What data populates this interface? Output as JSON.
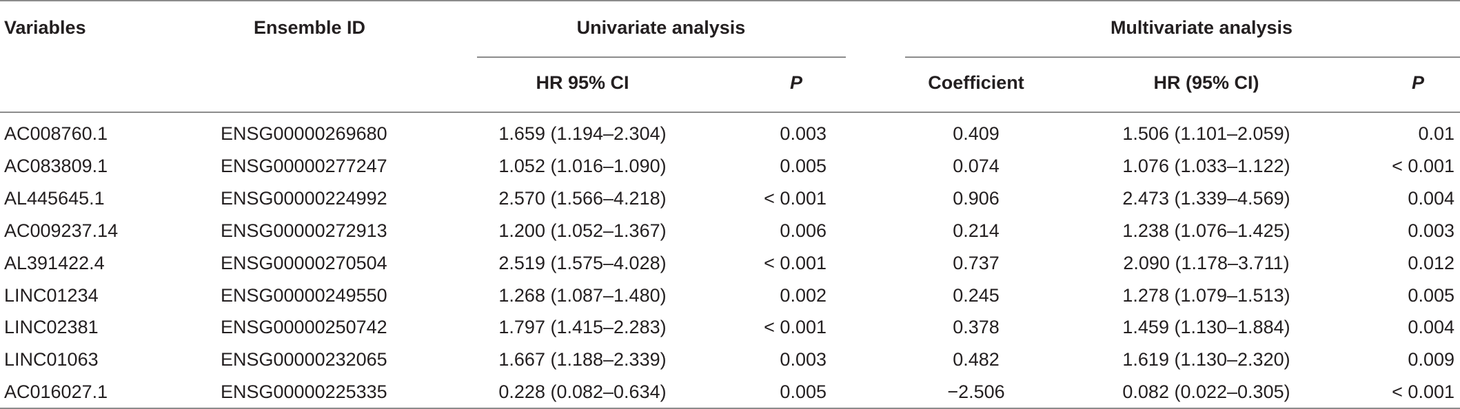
{
  "header": {
    "variables": "Variables",
    "ensemble_id": "Ensemble ID",
    "univariate": "Univariate analysis",
    "multivariate": "Multivariate analysis",
    "uni_hr": "HR 95% CI",
    "uni_p": "P",
    "coefficient": "Coefficient",
    "multi_hr": "HR (95% CI)",
    "multi_p": "P"
  },
  "rows": [
    {
      "variable": "AC008760.1",
      "ensemble": "ENSG00000269680",
      "uni_hr": "1.659 (1.194–2.304)",
      "uni_p": "0.003",
      "coef": "0.409",
      "multi_hr": "1.506 (1.101–2.059)",
      "multi_p": "0.01"
    },
    {
      "variable": "AC083809.1",
      "ensemble": "ENSG00000277247",
      "uni_hr": "1.052 (1.016–1.090)",
      "uni_p": "0.005",
      "coef": "0.074",
      "multi_hr": "1.076 (1.033–1.122)",
      "multi_p": "< 0.001"
    },
    {
      "variable": "AL445645.1",
      "ensemble": "ENSG00000224992",
      "uni_hr": "2.570 (1.566–4.218)",
      "uni_p": "< 0.001",
      "coef": "0.906",
      "multi_hr": "2.473 (1.339–4.569)",
      "multi_p": "0.004"
    },
    {
      "variable": "AC009237.14",
      "ensemble": "ENSG00000272913",
      "uni_hr": "1.200 (1.052–1.367)",
      "uni_p": "0.006",
      "coef": "0.214",
      "multi_hr": "1.238 (1.076–1.425)",
      "multi_p": "0.003"
    },
    {
      "variable": "AL391422.4",
      "ensemble": "ENSG00000270504",
      "uni_hr": "2.519 (1.575–4.028)",
      "uni_p": "< 0.001",
      "coef": "0.737",
      "multi_hr": "2.090 (1.178–3.711)",
      "multi_p": "0.012"
    },
    {
      "variable": "LINC01234",
      "ensemble": "ENSG00000249550",
      "uni_hr": "1.268 (1.087–1.480)",
      "uni_p": "0.002",
      "coef": "0.245",
      "multi_hr": "1.278 (1.079–1.513)",
      "multi_p": "0.005"
    },
    {
      "variable": "LINC02381",
      "ensemble": "ENSG00000250742",
      "uni_hr": "1.797 (1.415–2.283)",
      "uni_p": "< 0.001",
      "coef": "0.378",
      "multi_hr": "1.459 (1.130–1.884)",
      "multi_p": "0.004"
    },
    {
      "variable": "LINC01063",
      "ensemble": "ENSG00000232065",
      "uni_hr": "1.667 (1.188–2.339)",
      "uni_p": "0.003",
      "coef": "0.482",
      "multi_hr": "1.619 (1.130–2.320)",
      "multi_p": "0.009"
    },
    {
      "variable": "AC016027.1",
      "ensemble": "ENSG00000225335",
      "uni_hr": "0.228 (0.082–0.634)",
      "uni_p": "0.005",
      "coef": "−2.506",
      "multi_hr": "0.082 (0.022–0.305)",
      "multi_p": "< 0.001"
    }
  ]
}
